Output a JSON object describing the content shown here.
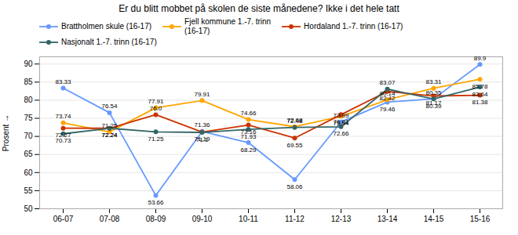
{
  "chart_data": {
    "type": "line",
    "title": "Er du blitt mobbet på skolen de siste månedene? Ikke i det hele tatt",
    "ylabel": "Prosent",
    "categories": [
      "06-07",
      "07-08",
      "08-09",
      "09-10",
      "10-11",
      "11-12",
      "12-13",
      "13-14",
      "14-15",
      "15-16"
    ],
    "series": [
      {
        "name": "Brattholmen skule (16-17)",
        "color": "#6699FF",
        "values": [
          83.33,
          76.54,
          53.66,
          71.36,
          68.29,
          58.06,
          73.99,
          79.46,
          80.39,
          89.9
        ]
      },
      {
        "name": "Fjell kommune 1.-7. trinn\n(16-17)",
        "color": "#FFA500",
        "values": [
          73.74,
          71.25,
          77.91,
          79.91,
          74.66,
          72.68,
          75.54,
          80.14,
          83.31,
          85.78
        ]
      },
      {
        "name": "Hordaland 1.-7. trinn (16-17)",
        "color": "#CC3300",
        "values": [
          72.27,
          72.24,
          76.0,
          71.19,
          73.16,
          69.55,
          76.01,
          82.42,
          81.17,
          81.38
        ],
        "value_labels": [
          "72.27",
          "72.24",
          "76.0",
          "71.19",
          "73.16",
          "69.55",
          "76.01",
          "82.42",
          "81.17",
          "81.38"
        ]
      },
      {
        "name": "Nasjonalt 1.-7. trinn (16-17)",
        "color": "#336666",
        "values": [
          70.73,
          72.24,
          71.25,
          71.1,
          71.93,
          72.48,
          72.66,
          83.07,
          80.35,
          83.64
        ]
      }
    ],
    "marker": "circle",
    "ylim": [
      50,
      92
    ],
    "yticks": [
      50,
      55,
      60,
      65,
      70,
      75,
      80,
      85,
      90
    ],
    "grid": true,
    "data_labels": true,
    "legend": "top"
  }
}
